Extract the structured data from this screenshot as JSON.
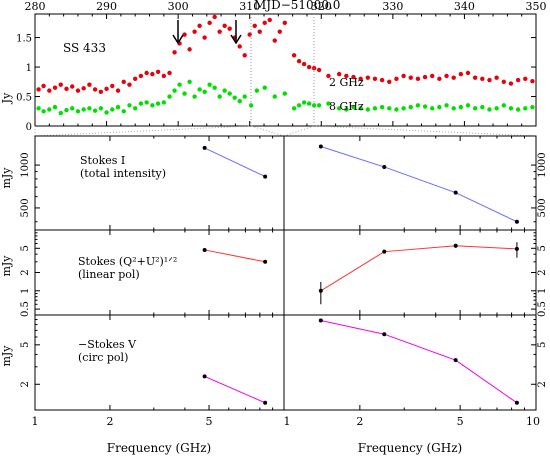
{
  "figure": {
    "top_axis_label": "MJD−51000.0",
    "source_label": "SS 433",
    "lightcurve_ylabel": "Jy",
    "bottom_xlabel_left": "Frequency (GHz)",
    "bottom_xlabel_right": "Frequency (GHz)",
    "stokes_i_lines": [
      "Stokes I",
      "(total intensity)"
    ],
    "stokes_lin_lines": [
      "Stokes (Q²+U²)¹ᐟ²",
      "(linear pol)"
    ],
    "stokes_v_lines": [
      "−Stokes V",
      "(circ pol)"
    ],
    "ylabel_i": "mJy",
    "ylabel_lin": "mJy",
    "ylabel_v": "mJy"
  },
  "chart_data": [
    {
      "type": "scatter",
      "title": "SS 433",
      "xlabel": "MJD−51000.0",
      "ylabel": "Jy",
      "xlim": [
        280,
        350
      ],
      "ylim": [
        0,
        1.9
      ],
      "x_ticks": [
        "280",
        "290",
        "300",
        "310",
        "320",
        "330",
        "340",
        "350"
      ],
      "y_ticks": [
        "0",
        "0.5",
        "1",
        "1.5"
      ],
      "arrows_at_x": [
        300,
        308
      ],
      "dotted_vertical_lines_at_x": [
        310.5,
        318.5
      ],
      "series": [
        {
          "name": "2 GHz",
          "color": "#e8000b",
          "x": [
            280.5,
            281.2,
            282,
            282.8,
            283.6,
            284.4,
            285.2,
            286,
            286.8,
            287.6,
            288.4,
            289.2,
            290,
            290.8,
            291.6,
            292.4,
            293.2,
            294,
            294.8,
            295.6,
            296.4,
            297.2,
            298,
            298.8,
            299.5,
            300.2,
            300.9,
            301.6,
            302.3,
            303,
            303.7,
            304.4,
            305.1,
            305.8,
            306.5,
            307.2,
            307.9,
            308.6,
            309.3,
            310,
            310.7,
            311.4,
            312.1,
            312.8,
            313.5,
            314.2,
            314.9,
            316.2,
            316.9,
            317.6,
            318.3,
            319,
            319.7,
            321,
            322.5,
            323.5,
            324.5,
            325.5,
            326.5,
            327.5,
            328.5,
            329.5,
            330.5,
            331.5,
            332.5,
            333.5,
            334.5,
            335.5,
            336.5,
            337.5,
            338.5,
            339.5,
            340.5,
            341.5,
            342.5,
            343.5,
            344.5,
            345.5,
            346.5,
            347.5,
            348.5,
            349.5
          ],
          "y": [
            0.62,
            0.68,
            0.6,
            0.65,
            0.7,
            0.63,
            0.67,
            0.6,
            0.64,
            0.7,
            0.62,
            0.58,
            0.63,
            0.68,
            0.6,
            0.75,
            0.7,
            0.8,
            0.85,
            0.9,
            0.88,
            0.92,
            0.85,
            0.9,
            1.25,
            1.4,
            1.55,
            1.3,
            1.6,
            1.7,
            1.5,
            1.75,
            1.85,
            1.6,
            1.7,
            1.65,
            1.5,
            1.35,
            1.2,
            1.55,
            1.7,
            1.6,
            1.75,
            1.8,
            1.45,
            1.6,
            1.75,
            1.2,
            1.1,
            1.05,
            1.0,
            0.98,
            0.95,
            0.85,
            0.88,
            0.85,
            0.83,
            0.8,
            0.82,
            0.8,
            0.78,
            0.75,
            0.8,
            0.85,
            0.82,
            0.8,
            0.83,
            0.85,
            0.8,
            0.85,
            0.82,
            0.88,
            0.9,
            0.82,
            0.8,
            0.78,
            0.82,
            0.75,
            0.72,
            0.78,
            0.8,
            0.76
          ]
        },
        {
          "name": "8 GHz",
          "color": "#00e000",
          "x": [
            280.5,
            281.2,
            282,
            282.8,
            283.6,
            284.4,
            285.2,
            286,
            286.8,
            287.6,
            288.4,
            289.2,
            290,
            290.8,
            291.6,
            292.4,
            293.2,
            294,
            294.8,
            295.6,
            296.4,
            297.2,
            298,
            298.8,
            299.5,
            300.2,
            300.9,
            301.6,
            302.3,
            303,
            303.7,
            304.4,
            305.1,
            305.8,
            306.5,
            307.2,
            307.9,
            308.6,
            309.3,
            310.2,
            311,
            312.1,
            313.5,
            314.9,
            316.2,
            316.9,
            317.6,
            318.3,
            319,
            319.7,
            321,
            322.5,
            323.5,
            324.5,
            325.5,
            326.5,
            327.5,
            328.5,
            329.5,
            330.5,
            331.5,
            332.5,
            333.5,
            334.5,
            335.5,
            336.5,
            337.5,
            338.5,
            339.5,
            340.5,
            341.5,
            342.5,
            343.5,
            344.5,
            345.5,
            346.5,
            347.5,
            348.5,
            349.5
          ],
          "y": [
            0.3,
            0.25,
            0.28,
            0.32,
            0.22,
            0.27,
            0.3,
            0.25,
            0.28,
            0.3,
            0.26,
            0.3,
            0.23,
            0.28,
            0.32,
            0.25,
            0.35,
            0.3,
            0.38,
            0.4,
            0.35,
            0.38,
            0.4,
            0.5,
            0.6,
            0.7,
            0.55,
            0.75,
            0.5,
            0.62,
            0.58,
            0.7,
            0.65,
            0.5,
            0.6,
            0.55,
            0.48,
            0.42,
            0.5,
            0.35,
            0.6,
            0.65,
            0.5,
            0.55,
            0.3,
            0.35,
            0.4,
            0.38,
            0.35,
            0.35,
            0.38,
            0.3,
            0.28,
            0.32,
            0.3,
            0.28,
            0.3,
            0.32,
            0.3,
            0.28,
            0.3,
            0.32,
            0.35,
            0.33,
            0.3,
            0.32,
            0.35,
            0.3,
            0.32,
            0.35,
            0.3,
            0.32,
            0.28,
            0.3,
            0.35,
            0.3,
            0.28,
            0.3,
            0.32
          ]
        }
      ]
    },
    {
      "type": "line",
      "title": "Stokes I (total intensity)",
      "xlabel": "Frequency (GHz)",
      "ylabel": "mJy",
      "x_scale": "log",
      "y_scale": "log",
      "y_ticks": [
        "500",
        "1000"
      ],
      "left_xlim": [
        1,
        10
      ],
      "right_xlim": [
        1,
        10
      ],
      "ylim": [
        350,
        1600
      ],
      "left_series": {
        "color": "#6b6bff",
        "x": [
          4.8,
          8.4
        ],
        "y": [
          1320,
          830
        ]
      },
      "right_series": {
        "color": "#6b6bff",
        "x": [
          1.4,
          2.5,
          4.8,
          8.4
        ],
        "y": [
          1350,
          970,
          640,
          400
        ]
      }
    },
    {
      "type": "line",
      "title": "Stokes (Q²+U²)^1/2 (linear pol)",
      "xlabel": "Frequency (GHz)",
      "ylabel": "mJy",
      "x_scale": "log",
      "y_scale": "log",
      "y_ticks": [
        "0.5",
        "1",
        "2",
        "5"
      ],
      "left_xlim": [
        1,
        10
      ],
      "right_xlim": [
        1,
        10
      ],
      "ylim": [
        0.4,
        10
      ],
      "left_series": {
        "color": "#ff3333",
        "x": [
          4.8,
          8.4
        ],
        "y": [
          4.7,
          3.0
        ]
      },
      "right_series": {
        "color": "#ff3333",
        "x": [
          1.4,
          2.5,
          4.8,
          8.4
        ],
        "y": [
          1.0,
          4.4,
          5.5,
          4.9
        ],
        "y_err": [
          0.4,
          0.3,
          0.4,
          1.4
        ]
      }
    },
    {
      "type": "line",
      "title": "−Stokes V (circ pol)",
      "xlabel": "Frequency (GHz)",
      "ylabel": "mJy",
      "x_scale": "log",
      "y_scale": "log",
      "y_ticks": [
        "2",
        "5"
      ],
      "left_xlim": [
        1,
        10
      ],
      "right_xlim": [
        1,
        10
      ],
      "ylim": [
        1.1,
        10
      ],
      "left_series": {
        "color": "#ee00ee",
        "x": [
          4.8,
          8.4
        ],
        "y": [
          2.4,
          1.3
        ]
      },
      "right_series": {
        "color": "#ee00ee",
        "x": [
          1.4,
          2.5,
          4.8,
          8.4
        ],
        "y": [
          8.8,
          6.4,
          3.5,
          1.3
        ]
      },
      "x_ticks_left": [
        "1",
        "2",
        "5"
      ],
      "x_ticks_right": [
        "1",
        "2",
        "5",
        "10"
      ]
    }
  ]
}
